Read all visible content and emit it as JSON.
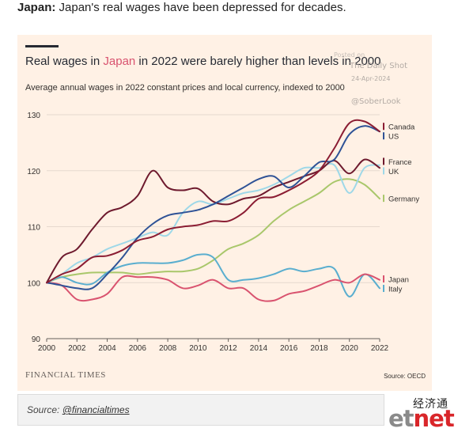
{
  "header": {
    "lead_bold": "Japan:",
    "lead_text": " Japan's real wages have been depressed for decades."
  },
  "card": {
    "title_before": "Real wages in ",
    "title_highlight": "Japan",
    "title_after": " in 2022 were barely higher than levels in 2000",
    "subtitle": "Average annual wages in 2022 constant prices and local currency, indexed to 2000",
    "watermark_posted": "Posted on",
    "watermark_name": "The Daily Shot",
    "watermark_date": "24-Apr-2024",
    "watermark_handle": "@SoberLook",
    "brand": "FINANCIAL TIMES",
    "source": "Source: OECD"
  },
  "footer": {
    "source_label": "Source: ",
    "source_link": "@financialtimes",
    "publisher_cn": "经济通",
    "publisher_logo_et": "et",
    "publisher_logo_net": "net"
  },
  "colors": {
    "Canada": "#8b1d33",
    "US": "#2e5296",
    "France": "#6e1a2e",
    "UK": "#9ed8e8",
    "Germany": "#a9c76b",
    "Japan": "#d9536f",
    "Italy": "#5aaecf"
  },
  "chart_data": {
    "type": "line",
    "title": "Real wages in Japan in 2022 were barely higher than levels in 2000",
    "subtitle": "Average annual wages in 2022 constant prices and local currency, indexed to 2000",
    "xlim": [
      2000,
      2022
    ],
    "ylim": [
      90,
      130
    ],
    "xticks": [
      2000,
      2002,
      2004,
      2006,
      2008,
      2010,
      2012,
      2014,
      2016,
      2018,
      2020,
      2022
    ],
    "yticks": [
      90,
      100,
      110,
      120,
      130
    ],
    "grid": true,
    "x": [
      2000,
      2001,
      2002,
      2003,
      2004,
      2005,
      2006,
      2007,
      2008,
      2009,
      2010,
      2011,
      2012,
      2013,
      2014,
      2015,
      2016,
      2017,
      2018,
      2019,
      2020,
      2021,
      2022
    ],
    "series": [
      {
        "name": "Canada",
        "values": [
          100,
          101.5,
          102.5,
          104.5,
          104.8,
          105.8,
          107.5,
          108.2,
          109.5,
          110,
          110.3,
          111,
          111,
          112.5,
          115,
          115.3,
          116.5,
          118,
          120,
          124,
          128.5,
          128.8,
          127
        ]
      },
      {
        "name": "US",
        "values": [
          100,
          99.5,
          99,
          99,
          101.5,
          104.5,
          108,
          110.5,
          112,
          112.5,
          113,
          114,
          115.5,
          117,
          118.5,
          119,
          117,
          119,
          121.5,
          122,
          126.5,
          128,
          127
        ]
      },
      {
        "name": "France",
        "values": [
          100,
          104.5,
          106,
          109.5,
          112.5,
          113.5,
          115.5,
          120,
          117,
          116.5,
          116.8,
          114.5,
          114,
          115,
          115.5,
          117,
          118,
          119,
          120,
          121.8,
          119.5,
          122,
          120.5
        ]
      },
      {
        "name": "UK",
        "values": [
          100,
          101.5,
          103.5,
          104.5,
          106,
          107,
          108,
          109,
          108.5,
          112.5,
          114.5,
          114,
          115,
          116,
          116.5,
          117.5,
          119,
          120.5,
          120.5,
          121,
          116,
          120.5,
          121
        ]
      },
      {
        "name": "Germany",
        "values": [
          100,
          101,
          101.5,
          101.8,
          101.8,
          101.8,
          101.5,
          101.8,
          102,
          102,
          102.5,
          104,
          106,
          107,
          108.5,
          111,
          113,
          114.5,
          116,
          118,
          118.5,
          117.5,
          115
        ]
      },
      {
        "name": "Japan",
        "values": [
          100,
          99.5,
          97,
          97,
          98,
          101,
          101,
          101,
          100.5,
          99,
          99.5,
          100.5,
          99,
          99,
          97,
          96.8,
          98,
          98.5,
          99.5,
          100.5,
          100,
          101.5,
          100.5
        ]
      },
      {
        "name": "Italy",
        "values": [
          100,
          101,
          100,
          99.8,
          101.8,
          103,
          103.5,
          103.5,
          103.5,
          104,
          105,
          104.5,
          100.5,
          100.5,
          100.8,
          101.5,
          102.5,
          102,
          102.5,
          102.5,
          97.5,
          101.5,
          99
        ]
      }
    ],
    "legend": [
      {
        "label": "Canada",
        "series": "Canada"
      },
      {
        "label": "US",
        "series": "US"
      },
      {
        "label": "France",
        "series": "France"
      },
      {
        "label": "UK",
        "series": "UK"
      },
      {
        "label": "Germany",
        "series": "Germany"
      },
      {
        "label": "Japan",
        "series": "Japan"
      },
      {
        "label": "Italy",
        "series": "Italy"
      }
    ],
    "legend_placement": "right"
  }
}
